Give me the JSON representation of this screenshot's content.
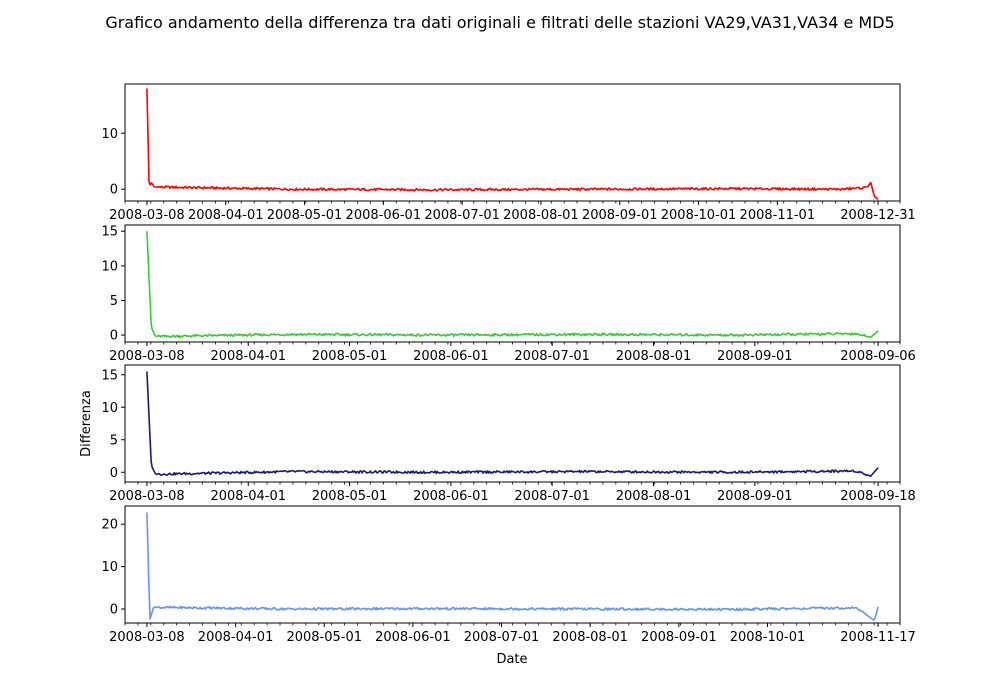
{
  "title": "Grafico andamento della differenza tra dati originali e filtrati delle stazioni VA29,VA31,VA34 e MD5",
  "xlabel": "Date",
  "chart_data": [
    {
      "type": "line",
      "color": "#ff0000",
      "ylabel": "",
      "ylim": [
        -2.1,
        18.8
      ],
      "xlim": [
        -0.03,
        1.03
      ],
      "y_ticks": [
        "0",
        "10"
      ],
      "y_tick_values": [
        0,
        10
      ],
      "x_tick_labels": [
        "2008-03-08",
        "2008-04-01",
        "2008-05-01",
        "2008-06-01",
        "2008-07-01",
        "2008-08-01",
        "2008-09-01",
        "2008-10-01",
        "2008-11-01",
        "2008-12-31"
      ],
      "x": [
        0.0,
        0.003,
        0.006,
        0.01,
        0.2,
        0.4,
        0.6,
        0.8,
        0.95,
        0.985,
        0.99,
        0.995,
        1.0
      ],
      "values": [
        18.0,
        0.5,
        1.2,
        0.4,
        0.0,
        -0.1,
        0.0,
        0.1,
        0.0,
        0.3,
        1.2,
        -1.3,
        -1.8
      ]
    },
    {
      "type": "line",
      "color": "#32cd32",
      "ylabel": "",
      "ylim": [
        -1.0,
        15.9
      ],
      "xlim": [
        -0.03,
        1.03
      ],
      "y_ticks": [
        "0",
        "5",
        "10",
        "15"
      ],
      "y_tick_values": [
        0,
        5,
        10,
        15
      ],
      "x_tick_labels": [
        "2008-03-08",
        "2008-04-01",
        "2008-05-01",
        "2008-06-01",
        "2008-07-01",
        "2008-08-01",
        "2008-09-01",
        "2008-09-06"
      ],
      "x": [
        0.0,
        0.006,
        0.012,
        0.2,
        0.4,
        0.6,
        0.8,
        0.97,
        0.99,
        1.0
      ],
      "values": [
        15.0,
        1.0,
        -0.2,
        0.1,
        0.0,
        0.1,
        0.0,
        0.2,
        -0.3,
        0.6
      ]
    },
    {
      "type": "line",
      "color": "#191970",
      "ylabel": "Differenza",
      "ylim": [
        -1.5,
        16.5
      ],
      "xlim": [
        -0.03,
        1.03
      ],
      "y_ticks": [
        "0",
        "5",
        "10",
        "15"
      ],
      "y_tick_values": [
        0,
        5,
        10,
        15
      ],
      "x_tick_labels": [
        "2008-03-08",
        "2008-04-01",
        "2008-05-01",
        "2008-06-01",
        "2008-07-01",
        "2008-08-01",
        "2008-09-01",
        "2008-09-18"
      ],
      "x": [
        0.0,
        0.006,
        0.012,
        0.2,
        0.4,
        0.6,
        0.8,
        0.97,
        0.99,
        1.0
      ],
      "values": [
        15.5,
        1.0,
        -0.3,
        0.1,
        0.0,
        0.1,
        0.0,
        0.2,
        -0.6,
        0.7
      ]
    },
    {
      "type": "line",
      "color": "#6495ed",
      "ylabel": "",
      "ylim": [
        -3.3,
        24.3
      ],
      "xlim": [
        -0.03,
        1.03
      ],
      "y_ticks": [
        "0",
        "10",
        "20"
      ],
      "y_tick_values": [
        0,
        10,
        20
      ],
      "x_tick_labels": [
        "2008-03-08",
        "2008-04-01",
        "2008-05-01",
        "2008-06-01",
        "2008-07-01",
        "2008-08-01",
        "2008-09-01",
        "2008-10-01",
        "2008-11-17"
      ],
      "x": [
        0.0,
        0.004,
        0.009,
        0.2,
        0.4,
        0.6,
        0.8,
        0.97,
        0.995,
        1.0
      ],
      "values": [
        22.8,
        -2.5,
        0.4,
        0.0,
        0.1,
        0.0,
        -0.1,
        0.3,
        -2.7,
        0.5
      ]
    }
  ]
}
